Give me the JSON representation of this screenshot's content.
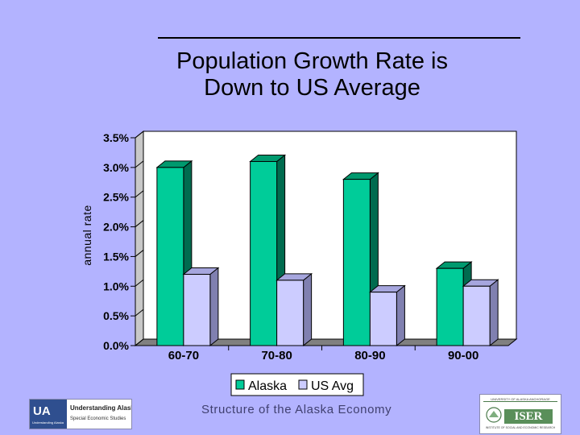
{
  "chart_data": {
    "type": "bar",
    "title_lines": [
      "Population Growth Rate is",
      "Down to US Average"
    ],
    "ylabel": "annual rate",
    "xlabel": "",
    "categories": [
      "60-70",
      "70-80",
      "80-90",
      "90-00"
    ],
    "series": [
      {
        "name": "Alaska",
        "values": [
          3.0,
          3.1,
          2.8,
          1.3
        ],
        "color": "#00cc99",
        "side": "#006b4f",
        "top": "#00996e"
      },
      {
        "name": "US Avg",
        "values": [
          1.2,
          1.1,
          0.9,
          1.0
        ],
        "color": "#ccccff",
        "side": "#8080b0",
        "top": "#a6a6de"
      }
    ],
    "ylim": [
      0,
      3.5
    ],
    "yticks": [
      "0.0%",
      "0.5%",
      "1.0%",
      "1.5%",
      "2.0%",
      "2.5%",
      "3.0%",
      "3.5%"
    ],
    "ytick_values": [
      0,
      0.5,
      1.0,
      1.5,
      2.0,
      2.5,
      3.0,
      3.5
    ],
    "grid": false,
    "legend_position": "bottom"
  },
  "footer": {
    "text": "Structure of the Alaska Economy"
  },
  "logos": {
    "ua": {
      "mark": "UA",
      "sub": "Understanding Alaska",
      "name": "Understanding Alaska:",
      "tag": "Special Economic Studies"
    },
    "iser": {
      "top": "UNIVERSITY OF ALASKA ANCHORAGE",
      "mark": "ISER",
      "sub": "INSTITUTE OF SOCIAL AND ECONOMIC RESEARCH"
    }
  },
  "colors": {
    "background": "#b3b3ff",
    "plot_floor": "#808080",
    "wall": "#ffffff"
  }
}
